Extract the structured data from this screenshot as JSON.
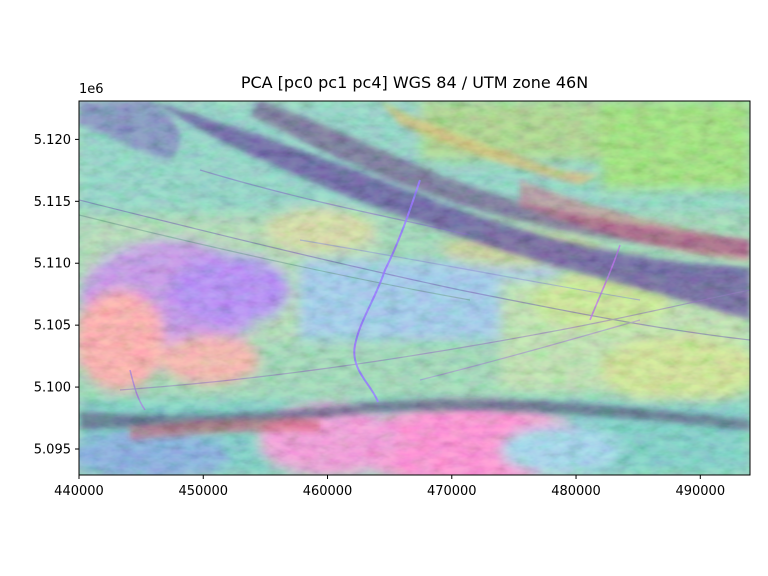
{
  "title": "PCA [pc0 pc1 pc4] WGS 84 / UTM zone 46N",
  "y_offset_label": "1e6",
  "x_axis": {
    "min": 440000,
    "max": 494000,
    "tick_labels": [
      "440000",
      "450000",
      "460000",
      "470000",
      "480000",
      "490000"
    ],
    "tick_values": [
      440000,
      450000,
      460000,
      470000,
      480000,
      490000
    ]
  },
  "y_axis": {
    "min": 5.0929,
    "max": 5.1231,
    "scale_factor": "1e6",
    "tick_labels": [
      "5.120",
      "5.115",
      "5.110",
      "5.105",
      "5.100",
      "5.095"
    ],
    "tick_values": [
      5.12,
      5.115,
      5.11,
      5.105,
      5.1,
      5.095
    ]
  },
  "colors": {
    "background": "#ffffff",
    "frame": "#000000",
    "ridge_dark": "#2a1a6e",
    "green": "#5fe07a",
    "magenta": "#e05fd2",
    "pink": "#ff7fa8",
    "yellow": "#c8d84a",
    "cyan": "#4fd0d6",
    "blue": "#5a6cf0",
    "river": "#6a4cff"
  },
  "image_description_icon": "false-color-satellite-raster"
}
